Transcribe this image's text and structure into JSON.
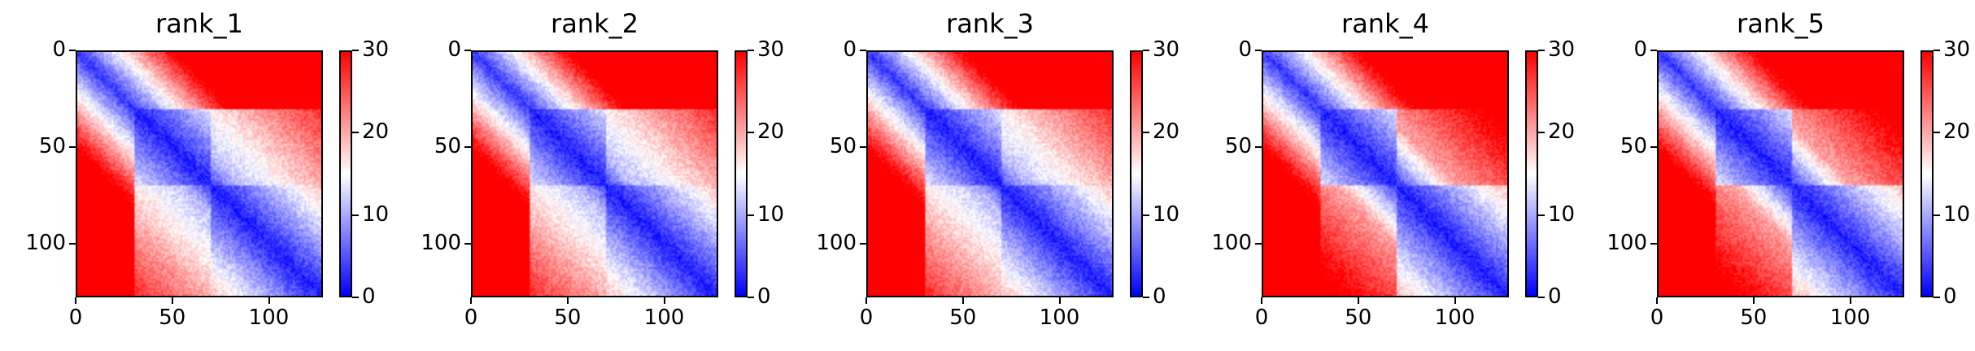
{
  "chart_data": [
    {
      "type": "heatmap",
      "title": "rank_1",
      "x_ticks": [
        "0",
        "50",
        "100"
      ],
      "y_ticks": [
        "0",
        "50",
        "100"
      ],
      "colorbar_ticks": [
        "0",
        "10",
        "20",
        "30"
      ],
      "vmin": 0,
      "vmax": 30,
      "size": 128,
      "colormap": [
        "#0000ff",
        "#ffffff",
        "#ff0000"
      ]
    },
    {
      "type": "heatmap",
      "title": "rank_2",
      "x_ticks": [
        "0",
        "50",
        "100"
      ],
      "y_ticks": [
        "0",
        "50",
        "100"
      ],
      "colorbar_ticks": [
        "0",
        "10",
        "20",
        "30"
      ],
      "vmin": 0,
      "vmax": 30,
      "size": 128,
      "colormap": [
        "#0000ff",
        "#ffffff",
        "#ff0000"
      ]
    },
    {
      "type": "heatmap",
      "title": "rank_3",
      "x_ticks": [
        "0",
        "50",
        "100"
      ],
      "y_ticks": [
        "0",
        "50",
        "100"
      ],
      "colorbar_ticks": [
        "0",
        "10",
        "20",
        "30"
      ],
      "vmin": 0,
      "vmax": 30,
      "size": 128,
      "colormap": [
        "#0000ff",
        "#ffffff",
        "#ff0000"
      ]
    },
    {
      "type": "heatmap",
      "title": "rank_4",
      "x_ticks": [
        "0",
        "50",
        "100"
      ],
      "y_ticks": [
        "0",
        "50",
        "100"
      ],
      "colorbar_ticks": [
        "0",
        "10",
        "20",
        "30"
      ],
      "vmin": 0,
      "vmax": 30,
      "size": 128,
      "colormap": [
        "#0000ff",
        "#ffffff",
        "#ff0000"
      ]
    },
    {
      "type": "heatmap",
      "title": "rank_5",
      "x_ticks": [
        "0",
        "50",
        "100"
      ],
      "y_ticks": [
        "0",
        "50",
        "100"
      ],
      "colorbar_ticks": [
        "0",
        "10",
        "20",
        "30"
      ],
      "vmin": 0,
      "vmax": 30,
      "size": 128,
      "colormap": [
        "#0000ff",
        "#ffffff",
        "#ff0000"
      ]
    }
  ]
}
